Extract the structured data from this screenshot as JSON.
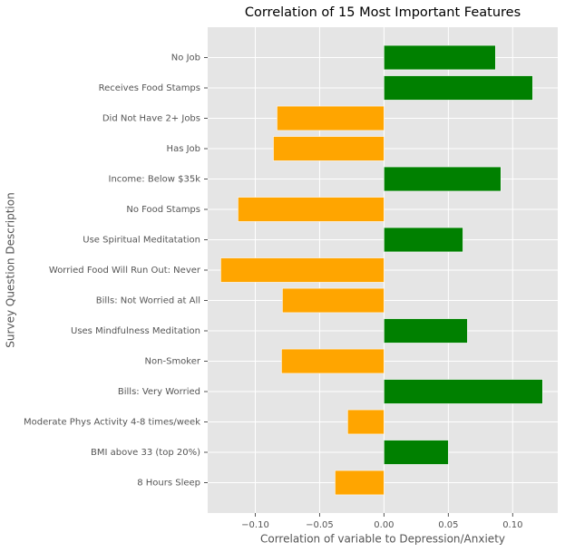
{
  "chart_data": {
    "type": "barh",
    "title": "Correlation of 15 Most Important Features",
    "xlabel": "Correlation of variable to Depression/Anxiety",
    "ylabel": "Survey Question Description",
    "categories": [
      "No Job",
      "Receives Food Stamps",
      "Did Not Have 2+ Jobs",
      "Has Job",
      "Income: Below $35k",
      "No Food Stamps",
      "Use Spiritual Meditatation",
      "Worried Food Will Run Out: Never",
      "Bills: Not Worried at All",
      "Uses Mindfulness Meditation",
      "Non-Smoker",
      "Bills: Very Worried",
      "Moderate Phys Activity 4-8 times/week",
      "BMI above 33 (top 20%)",
      "8 Hours Sleep"
    ],
    "values": [
      0.0866,
      0.1155,
      -0.0831,
      -0.0859,
      0.0908,
      -0.1134,
      0.0613,
      -0.1268,
      -0.0789,
      0.0648,
      -0.0796,
      0.1232,
      -0.0282,
      0.05,
      -0.038
    ],
    "colors": [
      "#008000",
      "#008000",
      "#ffa500",
      "#ffa500",
      "#008000",
      "#ffa500",
      "#008000",
      "#ffa500",
      "#ffa500",
      "#008000",
      "#ffa500",
      "#008000",
      "#ffa500",
      "#008000",
      "#ffa500"
    ],
    "xlim": [
      -0.137,
      0.135
    ],
    "xticks": [
      {
        "value": -0.1,
        "label": "−0.10"
      },
      {
        "value": -0.05,
        "label": "−0.05"
      },
      {
        "value": 0,
        "label": "0.00"
      },
      0.05,
      {
        "value": 0.1,
        "label": "0.10"
      }
    ],
    "grid": true
  }
}
